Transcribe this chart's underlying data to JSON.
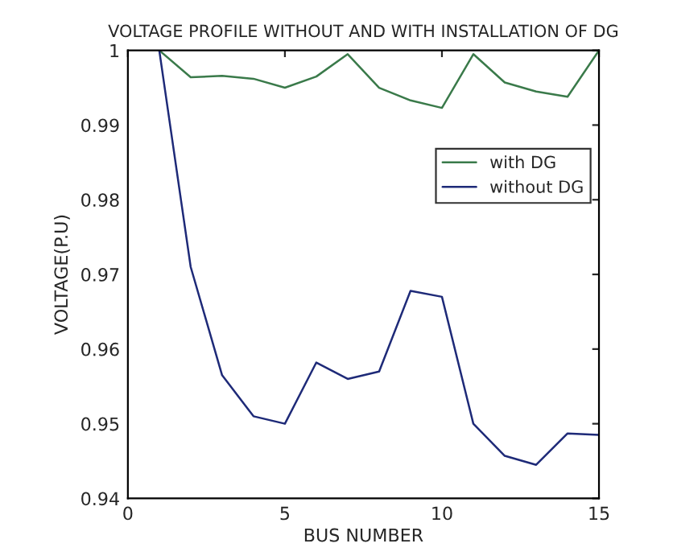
{
  "chart_data": {
    "type": "line",
    "title": "VOLTAGE PROFILE WITHOUT AND WITH INSTALLATION OF DG",
    "xlabel": "BUS NUMBER",
    "ylabel": "VOLTAGE(P.U)",
    "x": [
      1,
      2,
      3,
      4,
      5,
      6,
      7,
      8,
      9,
      10,
      11,
      12,
      13,
      14,
      15
    ],
    "series": [
      {
        "name": "with DG",
        "color": "#3a7a4a",
        "values": [
          1.0,
          0.9964,
          0.9966,
          0.9962,
          0.995,
          0.9965,
          0.9995,
          0.995,
          0.9933,
          0.9923,
          0.9995,
          0.9957,
          0.9945,
          0.9938,
          1.0
        ]
      },
      {
        "name": "without DG",
        "color": "#1e2a78",
        "values": [
          1.0,
          0.971,
          0.9565,
          0.951,
          0.95,
          0.9582,
          0.956,
          0.957,
          0.9678,
          0.967,
          0.95,
          0.9457,
          0.9445,
          0.9487,
          0.9485
        ]
      }
    ],
    "xlim": [
      0,
      15
    ],
    "ylim": [
      0.94,
      1
    ],
    "xticks": [
      0,
      5,
      10,
      15
    ],
    "yticks": [
      0.94,
      0.95,
      0.96,
      0.97,
      0.98,
      0.99,
      1
    ],
    "legend": "right",
    "grid": false,
    "line_style": "solid",
    "marker": "none"
  }
}
